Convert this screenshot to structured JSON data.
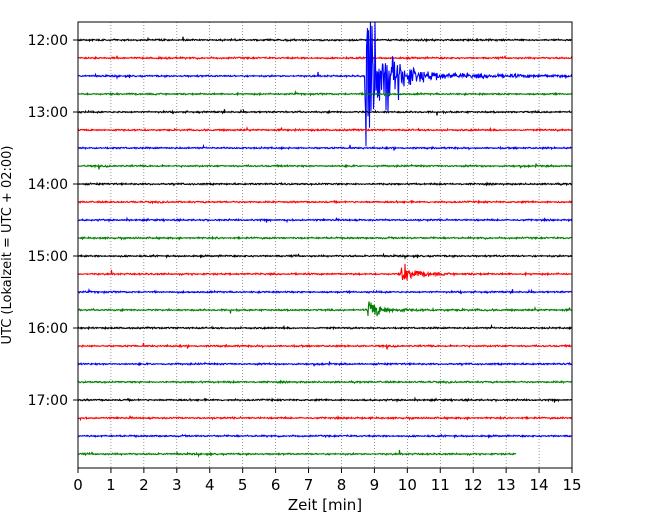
{
  "chart_data": {
    "type": "line",
    "chart_kind": "helicorder seismogram",
    "xlabel": "Zeit  [min]",
    "ylabel": "UTC (Lokalzeit = UTC + 02:00)",
    "xlim": [
      0,
      15
    ],
    "x_ticks": [
      "0",
      "1",
      "2",
      "3",
      "4",
      "5",
      "6",
      "7",
      "8",
      "9",
      "10",
      "11",
      "12",
      "13",
      "14",
      "15"
    ],
    "vertical_grid": "dotted",
    "trace_interval_min": 15,
    "first_trace_time": "12:00",
    "y_tick_labels": [
      "12:00",
      "13:00",
      "14:00",
      "15:00",
      "16:00",
      "17:00"
    ],
    "colors": [
      "#000000",
      "#ff0000",
      "#0000ff",
      "#008000"
    ],
    "traces": [
      {
        "start": "12:00",
        "color": "#000000",
        "end_min": 15
      },
      {
        "start": "12:15",
        "color": "#ff0000",
        "end_min": 15
      },
      {
        "start": "12:30",
        "color": "#0000ff",
        "end_min": 15
      },
      {
        "start": "12:45",
        "color": "#008000",
        "end_min": 15
      },
      {
        "start": "13:00",
        "color": "#000000",
        "end_min": 15
      },
      {
        "start": "13:15",
        "color": "#ff0000",
        "end_min": 15
      },
      {
        "start": "13:30",
        "color": "#0000ff",
        "end_min": 15
      },
      {
        "start": "13:45",
        "color": "#008000",
        "end_min": 15
      },
      {
        "start": "14:00",
        "color": "#000000",
        "end_min": 15
      },
      {
        "start": "14:15",
        "color": "#ff0000",
        "end_min": 15
      },
      {
        "start": "14:30",
        "color": "#0000ff",
        "end_min": 15
      },
      {
        "start": "14:45",
        "color": "#008000",
        "end_min": 15
      },
      {
        "start": "15:00",
        "color": "#000000",
        "end_min": 15
      },
      {
        "start": "15:15",
        "color": "#ff0000",
        "end_min": 15
      },
      {
        "start": "15:30",
        "color": "#0000ff",
        "end_min": 15
      },
      {
        "start": "15:45",
        "color": "#008000",
        "end_min": 15
      },
      {
        "start": "16:00",
        "color": "#000000",
        "end_min": 15
      },
      {
        "start": "16:15",
        "color": "#ff0000",
        "end_min": 15
      },
      {
        "start": "16:30",
        "color": "#0000ff",
        "end_min": 15
      },
      {
        "start": "16:45",
        "color": "#008000",
        "end_min": 15
      },
      {
        "start": "17:00",
        "color": "#000000",
        "end_min": 15
      },
      {
        "start": "17:15",
        "color": "#ff0000",
        "end_min": 15
      },
      {
        "start": "17:30",
        "color": "#0000ff",
        "end_min": 15
      },
      {
        "start": "17:45",
        "color": "#008000",
        "end_min": 13.3
      }
    ],
    "events": [
      {
        "trace_start": "12:30",
        "onset_min": 8.7,
        "duration_min": 6.3,
        "clipped": true
      },
      {
        "trace_start": "15:15",
        "onset_min": 9.8,
        "duration_min": 2.2
      },
      {
        "trace_start": "15:45",
        "onset_min": 8.8,
        "duration_min": 3.0
      }
    ]
  }
}
